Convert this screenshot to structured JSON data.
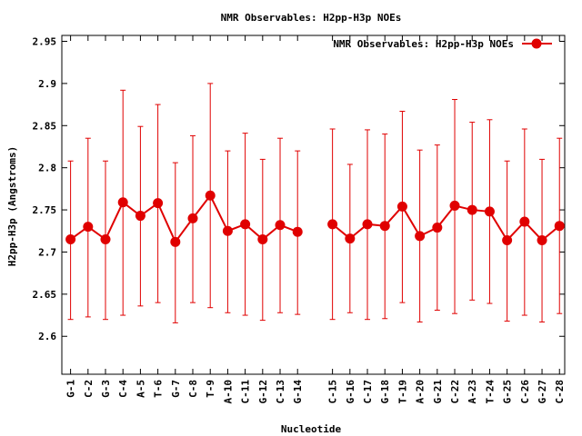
{
  "chart_data": {
    "type": "line",
    "title": "NMR Observables: H2pp-H3p NOEs",
    "xlabel": "Nucleotide",
    "ylabel": "H2pp-H3p (Angstroms)",
    "ylim": [
      2.555,
      2.957
    ],
    "yticks": [
      "2.6",
      "2.65",
      "2.7",
      "2.75",
      "2.8",
      "2.85",
      "2.9",
      "2.95"
    ],
    "grid": false,
    "legend_position": "top-right",
    "color": "#e00000",
    "categories": [
      "G-1",
      "C-2",
      "G-3",
      "C-4",
      "A-5",
      "T-6",
      "G-7",
      "C-8",
      "T-9",
      "A-10",
      "C-11",
      "G-12",
      "C-13",
      "G-14",
      "C-15",
      "G-16",
      "C-17",
      "G-18",
      "T-19",
      "A-20",
      "G-21",
      "C-22",
      "A-23",
      "T-24",
      "G-25",
      "C-26",
      "G-27",
      "C-28"
    ],
    "x_positions": [
      1,
      2,
      3,
      4,
      5,
      6,
      7,
      8,
      9,
      10,
      11,
      12,
      13,
      14,
      16,
      17,
      18,
      19,
      20,
      21,
      22,
      23,
      24,
      25,
      26,
      27,
      28,
      29
    ],
    "series": [
      {
        "name": "NMR Observables: H2pp-H3p NOEs",
        "values": [
          2.715,
          2.73,
          2.715,
          2.759,
          2.743,
          2.758,
          2.712,
          2.74,
          2.767,
          2.725,
          2.733,
          2.715,
          2.732,
          2.724,
          2.733,
          2.716,
          2.733,
          2.731,
          2.754,
          2.719,
          2.729,
          2.755,
          2.75,
          2.748,
          2.714,
          2.736,
          2.714,
          2.731
        ],
        "upper": [
          2.808,
          2.835,
          2.808,
          2.892,
          2.849,
          2.875,
          2.806,
          2.838,
          2.9,
          2.82,
          2.841,
          2.81,
          2.835,
          2.82,
          2.846,
          2.804,
          2.845,
          2.84,
          2.867,
          2.821,
          2.827,
          2.881,
          2.854,
          2.857,
          2.808,
          2.846,
          2.81,
          2.835
        ],
        "lower": [
          2.62,
          2.623,
          2.62,
          2.625,
          2.636,
          2.64,
          2.616,
          2.64,
          2.634,
          2.628,
          2.625,
          2.619,
          2.628,
          2.626,
          2.62,
          2.628,
          2.62,
          2.621,
          2.64,
          2.617,
          2.631,
          2.627,
          2.643,
          2.639,
          2.618,
          2.625,
          2.617,
          2.627
        ]
      }
    ]
  }
}
